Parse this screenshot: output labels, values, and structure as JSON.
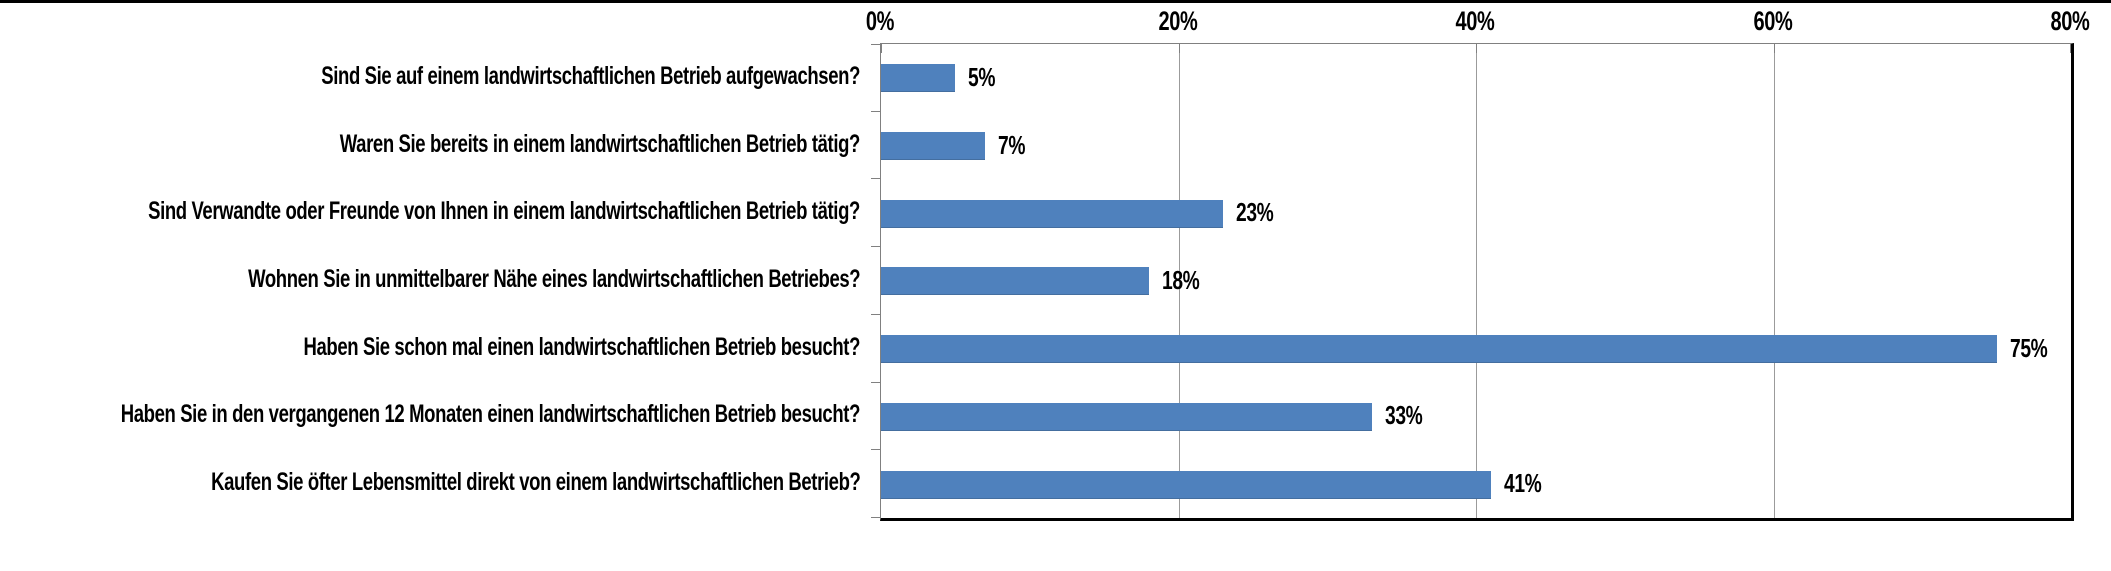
{
  "page": {
    "background_color": "#ffffff",
    "top_rule_color": "#000000"
  },
  "chart_data": {
    "type": "bar",
    "orientation": "horizontal",
    "title": "",
    "xlabel": "",
    "ylabel": "",
    "xlim": [
      0,
      80
    ],
    "grid": true,
    "legend": false,
    "bar_color": "#4f81bd",
    "gridline_color": "#9b9b9b",
    "categories": [
      "Sind Sie auf einem landwirtschaftlichen Betrieb aufgewachsen?",
      "Waren Sie bereits in einem landwirtschaftlichen Betrieb tätig?",
      "Sind Verwandte oder Freunde von Ihnen in einem landwirtschaftlichen Betrieb tätig?",
      "Wohnen Sie in unmittelbarer Nähe eines landwirtschaftlichen Betriebes?",
      "Haben Sie schon mal einen landwirtschaftlichen Betrieb besucht?",
      "Haben Sie in den vergangenen 12 Monaten einen landwirtschaftlichen Betrieb besucht?",
      "Kaufen Sie öfter Lebensmittel direkt von einem landwirtschaftlichen Betrieb?"
    ],
    "values": [
      5,
      7,
      23,
      18,
      75,
      33,
      41
    ],
    "value_labels": [
      "5%",
      "7%",
      "23%",
      "18%",
      "75%",
      "33%",
      "41%"
    ],
    "x_tick_values": [
      0,
      20,
      40,
      60,
      80
    ],
    "x_tick_labels": [
      "0%",
      "20%",
      "40%",
      "60%",
      "80%"
    ]
  }
}
